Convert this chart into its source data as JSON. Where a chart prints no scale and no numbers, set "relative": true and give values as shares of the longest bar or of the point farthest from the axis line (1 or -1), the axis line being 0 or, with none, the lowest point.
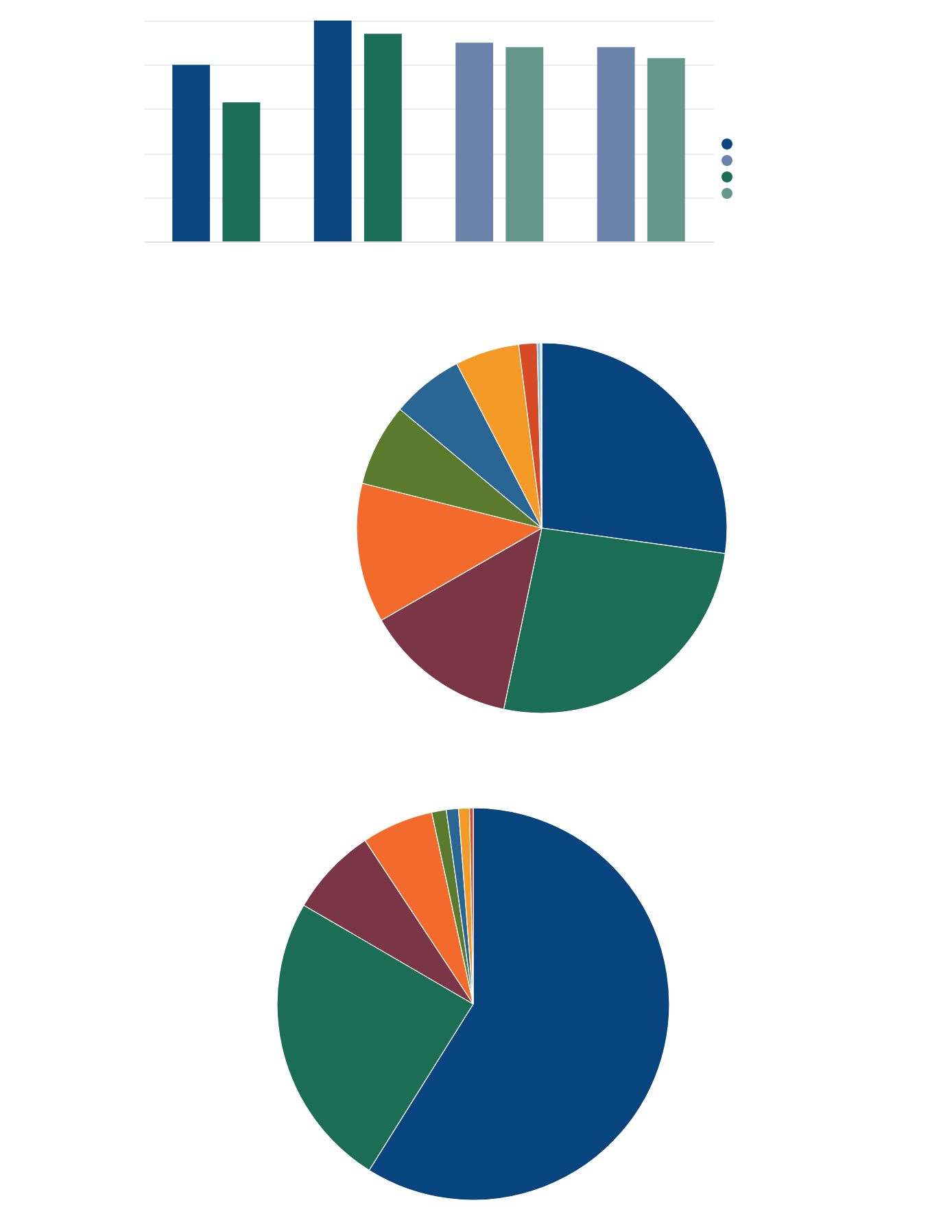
{
  "chart_data": [
    {
      "type": "bar",
      "relative": true,
      "grid": "y",
      "categories": [
        null,
        null,
        null,
        null
      ],
      "series": [
        {
          "colors": [
            "#0b4680",
            "#0b4680",
            "#6a83ab",
            "#6a83ab"
          ],
          "values": [
            0.8,
            1,
            0.9,
            0.88
          ]
        },
        {
          "colors": [
            "#1b6e53",
            "#1b6e53",
            "#64998a",
            "#64998a"
          ],
          "values": [
            0.63,
            0.94,
            0.88,
            0.83
          ]
        }
      ]
    },
    {
      "type": "pie",
      "categories": [
        null,
        null,
        null,
        null,
        null,
        null,
        null,
        null,
        null,
        null
      ],
      "values": [
        27.2,
        26.1,
        13.4,
        12.2,
        7.2,
        6.3,
        5.6,
        1.6,
        0.3,
        0.1
      ],
      "colors": [
        "#08457e",
        "#1b6e53",
        "#7a3547",
        "#f26b2c",
        "#5a7a2e",
        "#2a6693",
        "#f39a27",
        "#d64a25",
        "#8cc0d8",
        "#f0d27c"
      ]
    },
    {
      "type": "pie",
      "categories": [
        null,
        null,
        null,
        null,
        null,
        null,
        null,
        null
      ],
      "values": [
        58.9,
        24.5,
        7.3,
        5.9,
        1.2,
        1.0,
        0.9,
        0.3
      ],
      "colors": [
        "#08457e",
        "#1b6e53",
        "#7a3547",
        "#f26b2c",
        "#5a7a2e",
        "#2a6693",
        "#f39a27",
        "#d64a25"
      ]
    }
  ]
}
